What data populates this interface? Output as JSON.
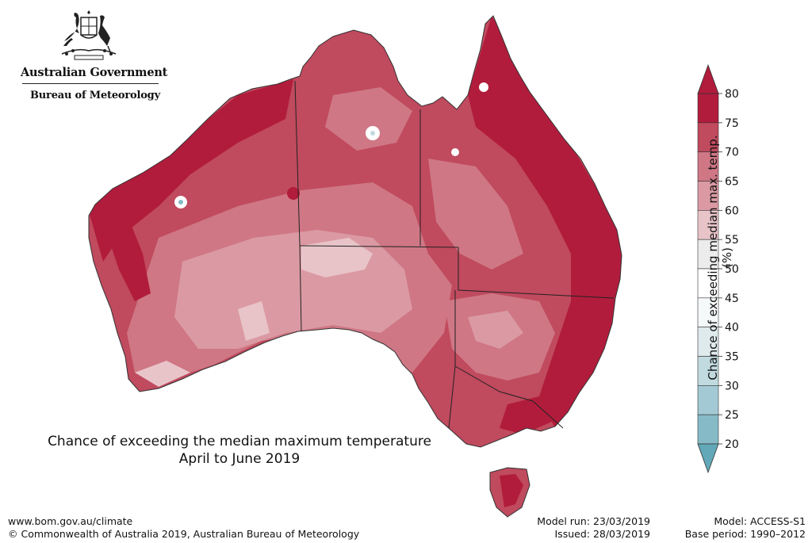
{
  "header": {
    "government": "Australian Government",
    "bureau": "Bureau of Meteorology",
    "crest_icon": "commonwealth-coat-of-arms-icon"
  },
  "map": {
    "title_line1": "Chance of exceeding the median maximum temperature",
    "title_line2": "April to June 2019",
    "region": "Australia"
  },
  "colorbar": {
    "label": "Chance of exceeding median max. temp. (%)",
    "ticks": [
      "20",
      "25",
      "30",
      "35",
      "40",
      "45",
      "50",
      "55",
      "60",
      "65",
      "70",
      "75",
      "80"
    ],
    "colors": [
      "#62a8b8",
      "#86bac6",
      "#a3cad4",
      "#c1dadf",
      "#dfeaec",
      "#f5f9fa",
      "#ffffff",
      "#ececec",
      "#e8c4c9",
      "#db9aa3",
      "#cf7785",
      "#c04a5e",
      "#b11c3c"
    ]
  },
  "footer": {
    "url": "www.bom.gov.au/climate",
    "copyright": "© Commonwealth of Australia 2019, Australian Bureau of Meteorology",
    "model_run": "Model run: 23/03/2019",
    "issued": "Issued: 28/03/2019",
    "model": "Model: ACCESS-S1",
    "base_period": "Base period: 1990–2012"
  }
}
